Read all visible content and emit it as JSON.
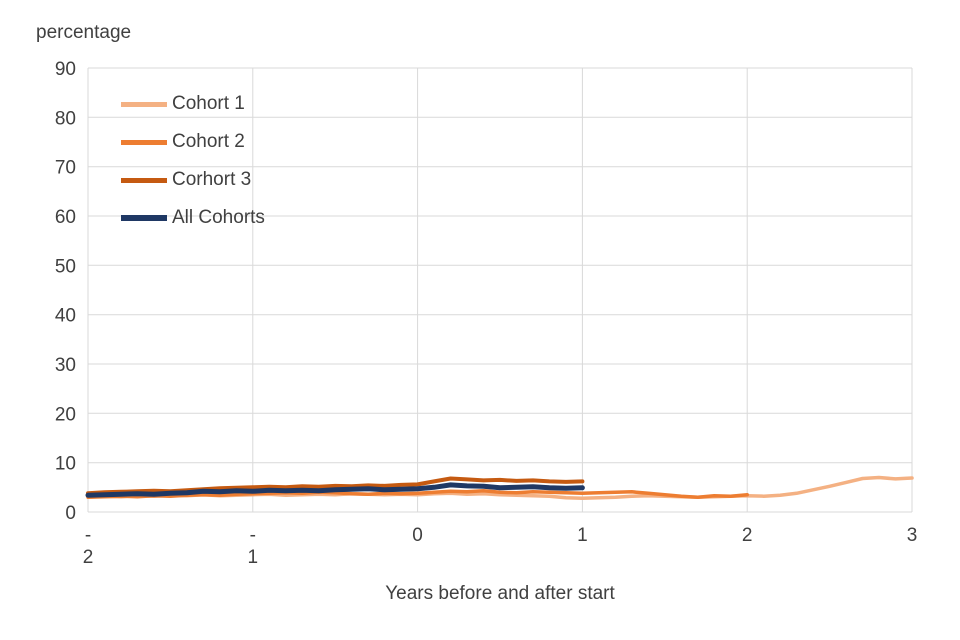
{
  "colors": {
    "grid": "#D9D9D9",
    "text": "#404040",
    "background": "#FFFFFF"
  },
  "chart_data": {
    "type": "line",
    "title": "",
    "y_axis_title": "percentage",
    "x_axis_title": "Years before and after start",
    "xlim": [
      -2,
      3
    ],
    "ylim": [
      0,
      90
    ],
    "y_ticks": [
      0,
      10,
      20,
      30,
      40,
      50,
      60,
      70,
      80,
      90
    ],
    "x_ticks": [
      {
        "value": -2,
        "lines": [
          "-",
          "2"
        ]
      },
      {
        "value": -1,
        "lines": [
          "-",
          "1"
        ]
      },
      {
        "value": 0,
        "lines": [
          "0"
        ]
      },
      {
        "value": 1,
        "lines": [
          "1"
        ]
      },
      {
        "value": 2,
        "lines": [
          "2"
        ]
      },
      {
        "value": 3,
        "lines": [
          "3"
        ]
      }
    ],
    "grid": true,
    "legend_position": "top-left-inside",
    "series": [
      {
        "name": "Cohort 1",
        "color": "#F4B183",
        "width": 3.5,
        "x_start": -2.0,
        "x_step": 0.1,
        "values": [
          3.0,
          3.2,
          3.1,
          3.3,
          3.2,
          3.4,
          3.3,
          3.5,
          3.3,
          3.4,
          3.5,
          3.6,
          3.4,
          3.5,
          3.6,
          3.5,
          3.7,
          3.6,
          3.5,
          3.6,
          3.5,
          3.7,
          3.8,
          3.6,
          3.7,
          3.5,
          3.4,
          3.3,
          3.2,
          2.9,
          2.8,
          2.9,
          3.0,
          3.2,
          3.3,
          3.2,
          3.1,
          3.0,
          3.1,
          3.2,
          3.3,
          3.2,
          3.4,
          3.8,
          4.5,
          5.2,
          6.0,
          6.8,
          7.0,
          6.7,
          6.9
        ]
      },
      {
        "name": "Cohort 2",
        "color": "#ED7D31",
        "width": 3.5,
        "x_start": -2.0,
        "x_step": 0.1,
        "values": [
          3.0,
          3.1,
          3.2,
          3.1,
          3.3,
          3.2,
          3.4,
          3.5,
          3.4,
          3.6,
          3.7,
          3.8,
          3.9,
          3.8,
          4.0,
          3.9,
          3.7,
          3.6,
          3.8,
          3.7,
          3.8,
          4.0,
          4.2,
          4.1,
          4.3,
          4.0,
          3.9,
          4.1,
          4.0,
          3.9,
          3.8,
          3.9,
          4.0,
          4.1,
          3.8,
          3.5,
          3.2,
          3.0,
          3.3,
          3.2,
          3.5
        ]
      },
      {
        "name": "Corhort 3",
        "color": "#C55A11",
        "width": 4,
        "x_start": -2.0,
        "x_step": 0.1,
        "values": [
          3.8,
          4.0,
          4.1,
          4.2,
          4.3,
          4.2,
          4.4,
          4.6,
          4.8,
          4.9,
          5.0,
          5.1,
          5.0,
          5.2,
          5.1,
          5.3,
          5.2,
          5.4,
          5.3,
          5.5,
          5.6,
          6.2,
          6.8,
          6.6,
          6.4,
          6.5,
          6.3,
          6.4,
          6.2,
          6.1,
          6.2
        ]
      },
      {
        "name": "All Cohorts",
        "color": "#1F3864",
        "width": 5,
        "x_start": -2.0,
        "x_step": 0.1,
        "values": [
          3.4,
          3.5,
          3.6,
          3.7,
          3.6,
          3.8,
          3.9,
          4.2,
          4.1,
          4.3,
          4.2,
          4.4,
          4.3,
          4.4,
          4.3,
          4.5,
          4.6,
          4.7,
          4.5,
          4.6,
          4.7,
          5.0,
          5.5,
          5.3,
          5.2,
          4.9,
          5.0,
          5.1,
          4.9,
          4.8,
          4.9
        ]
      }
    ]
  }
}
